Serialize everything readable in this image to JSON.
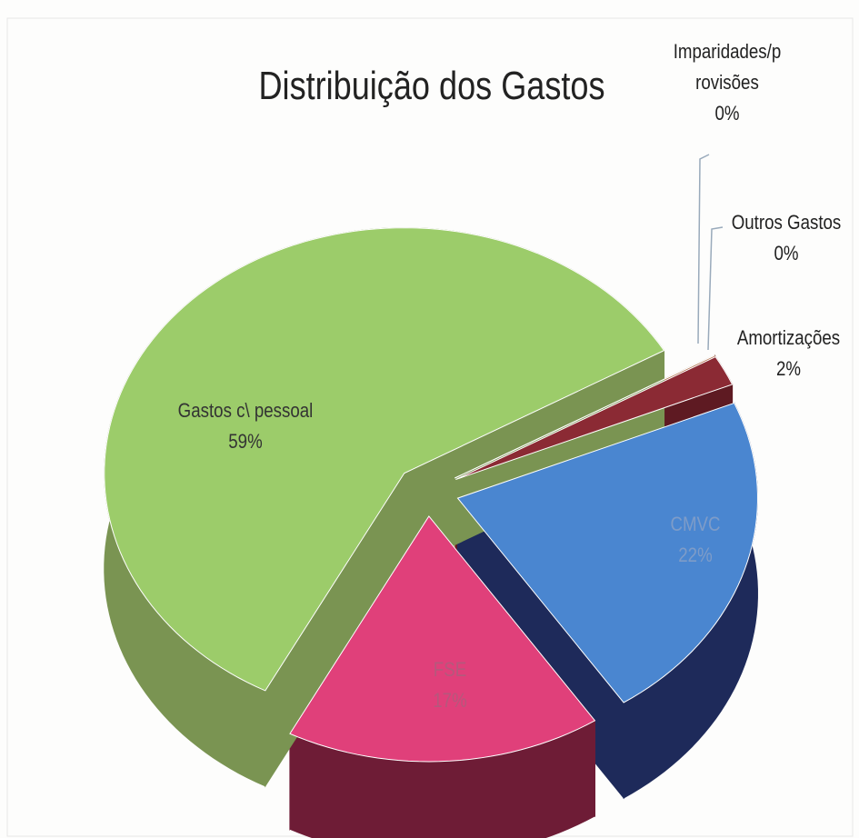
{
  "chart_data": {
    "type": "pie3d",
    "title": "Distribuição dos Gastos",
    "categories": [
      "Imparidades/provisões",
      "Outros Gastos",
      "Amortizações",
      "CMVC",
      "FSE",
      "Gastos c\\ pessoal"
    ],
    "values": [
      0,
      0,
      2,
      22,
      17,
      59
    ],
    "value_labels": [
      "0%",
      "0%",
      "2%",
      "22%",
      "17%",
      "59%"
    ],
    "colors": [
      "#a8c4ea",
      "#e8a070",
      "#8b2a34",
      "#4a86d0",
      "#e0407a",
      "#9ccc6a"
    ],
    "side_colors": [
      "#7f98bb",
      "#b87850",
      "#5e1a22",
      "#1e2a5a",
      "#6e1c36",
      "#7a9452"
    ]
  }
}
